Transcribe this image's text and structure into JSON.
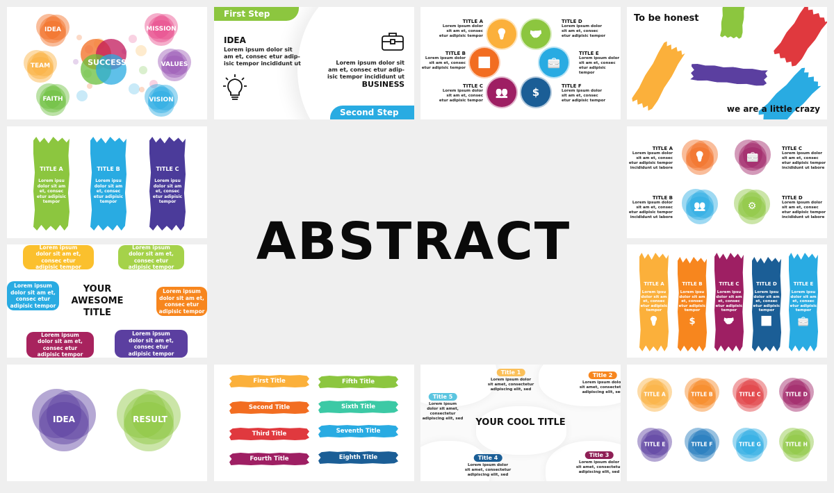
{
  "hero": {
    "title": "ABSTRACT"
  },
  "colors": {
    "yellow": "#fbb03b",
    "orange": "#f26d21",
    "red": "#e0393e",
    "crimson": "#9e1f63",
    "purple": "#5b3fa0",
    "blue": "#1b6fae",
    "lightblue": "#29abe2",
    "green": "#8cc63f",
    "pink": "#e84c8b",
    "violet": "#9b59b6",
    "teal": "#3cc9a5",
    "navy": "#1b5e96"
  },
  "success_slide": {
    "center": "SUCCESS",
    "bubbles": [
      {
        "label": "IDEA",
        "color": "#f26d21"
      },
      {
        "label": "MISSION",
        "color": "#e84c8b"
      },
      {
        "label": "TEAM",
        "color": "#fbb03b"
      },
      {
        "label": "VALUES",
        "color": "#9b59b6"
      },
      {
        "label": "FAITH",
        "color": "#6abf3c"
      },
      {
        "label": "VISION",
        "color": "#29abe2"
      }
    ]
  },
  "steps_slide": {
    "first_step": "First Step",
    "second_step": "Second Step",
    "idea_title": "IDEA",
    "idea_text": "Lorem ipsum dolor sit\nam et, consec etur adip-\nisic tempor incididunt ut",
    "business_text": "Lorem ipsum dolor sit\nam et, consec etur adip-\nisic tempor incididunt ut",
    "business_title": "BUSINESS",
    "icons": [
      "lightbulb-icon",
      "briefcase-icon"
    ]
  },
  "badges_slide": {
    "items": [
      {
        "title": "TITLE A",
        "text": "Lorem ipsum dolor\nsit am et, consec\netur adipisic tempor",
        "color": "#fbb03b",
        "icon": "lightbulb-icon"
      },
      {
        "title": "TITLE B",
        "text": "Lorem ipsum dolor\nsit am et, consec\netur adipisic tempor",
        "color": "#f26d21",
        "icon": "chart-icon"
      },
      {
        "title": "TITLE C",
        "text": "Lorem ipsum dolor\nsit am et, consec\netur adipisic tempor",
        "color": "#9e1f63",
        "icon": "team-icon"
      },
      {
        "title": "TITLE D",
        "text": "Lorem ipsum dolor\nsit am et, consec\netur adipisic tempor",
        "color": "#8cc63f",
        "icon": "handshake-icon"
      },
      {
        "title": "TITLE E",
        "text": "Lorem ipsum dolor\nsit am et, consec\netur adipisic tempor",
        "color": "#29abe2",
        "icon": "briefcase-icon"
      },
      {
        "title": "TITLE F",
        "text": "Lorem ipsum dolor\nsit am et, consec\netur adipisic tempor",
        "color": "#1b5e96",
        "icon": "dollar-icon"
      }
    ]
  },
  "honest_slide": {
    "top": "To be honest",
    "bottom": "we are a little crazy"
  },
  "brush3_slide": {
    "items": [
      {
        "title": "TITLE A",
        "text": "Lorem ipsu\ndolor sit am\net, consec\netur adipisic\ntempor",
        "color": "#8cc63f"
      },
      {
        "title": "TITLE B",
        "text": "Lorem ipsu\ndolor sit am\net, consec\netur adipisic\ntempor",
        "color": "#29abe2"
      },
      {
        "title": "TITLE C",
        "text": "Lorem ipsu\ndolor sit am\net, consec\netur adipisic\ntempor",
        "color": "#4b3b9a"
      }
    ]
  },
  "blobs4_slide": {
    "items": [
      {
        "title": "TITLE A",
        "text": "Lorem ipsum dolor\nsit am et, consec\netur adipisic tempor\nincididunt ut labore",
        "color": "#f26d21",
        "icon": "lightbulb-icon"
      },
      {
        "title": "TITLE B",
        "text": "Lorem ipsum dolor\nsit am et, consec\netur adipisic tempor\nincididunt ut labore",
        "color": "#29abe2",
        "icon": "team-icon"
      },
      {
        "title": "TITLE C",
        "text": "Lorem ipsum dolor\nsit am et, consec\netur adipisic tempor\nincididunt ut labore",
        "color": "#9e1f63",
        "icon": "briefcase-icon"
      },
      {
        "title": "TITLE D",
        "text": "Lorem ipsum dolor\nsit am et, consec\netur adipisic tempor\nincididunt ut labore",
        "color": "#8cc63f",
        "icon": "gear-icon"
      }
    ]
  },
  "awesome_slide": {
    "title": "YOUR\nAWESOME\nTITLE",
    "boxes": [
      {
        "text": "Lorem ipsum\ndolor sit am et,\nconsec etur\nadipisic tempor",
        "color": "#fbc02d"
      },
      {
        "text": "Lorem ipsum\ndolor sit am et,\nconsec etur\nadipisic tempor",
        "color": "#a5d24a"
      },
      {
        "text": "Lorem ipsum\ndolor sit am et,\nconsec etur\nadipisic tempor",
        "color": "#29abe2"
      },
      {
        "text": "Lorem ipsum\ndolor sit am et,\nconsec etur\nadipisic tempor",
        "color": "#f7861e"
      },
      {
        "text": "Lorem ipsum\ndolor sit am et,\nconsec etur\nadipisic tempor",
        "color": "#a8235e"
      },
      {
        "text": "Lorem ipsum\ndolor sit am et,\nconsec etur\nadipisic tempor",
        "color": "#5b3fa0"
      }
    ]
  },
  "brush5_slide": {
    "items": [
      {
        "title": "TITLE A",
        "text": "Lorem ipsu\ndolor sit am\net, consec\netur adipisic\ntempor",
        "color": "#fbb03b",
        "icon": "lightbulb-icon"
      },
      {
        "title": "TITLE B",
        "text": "Lorem ipsu\ndolor sit am\net, consec\netur adipisic\ntempor",
        "color": "#f7861e",
        "icon": "dollar-icon"
      },
      {
        "title": "TITLE C",
        "text": "Lorem ipsu\ndolor sit am\net, consec\netur adipisic\ntempor",
        "color": "#9e1f63",
        "icon": "handshake-icon"
      },
      {
        "title": "TITLE D",
        "text": "Lorem ipsu\ndolor sit am\net, consec\netur adipisic\ntempor",
        "color": "#1b5e96",
        "icon": "chart-icon"
      },
      {
        "title": "TITLE E",
        "text": "Lorem ipsu\ndolor sit am\net, consec\netur adipisic\ntempor",
        "color": "#29abe2",
        "icon": "briefcase-icon"
      }
    ]
  },
  "idea_result_slide": {
    "left": "IDEA",
    "right": "RESULT",
    "left_color": "#5b3fa0",
    "right_color": "#8cc63f"
  },
  "brush_titles_slide": {
    "items": [
      {
        "label": "First Title",
        "color": "#fbb03b"
      },
      {
        "label": "Second Title",
        "color": "#f26d21"
      },
      {
        "label": "Third Title",
        "color": "#e0393e"
      },
      {
        "label": "Fourth Title",
        "color": "#9e1f63"
      },
      {
        "label": "Fifth Title",
        "color": "#8cc63f"
      },
      {
        "label": "Sixth Title",
        "color": "#3cc9a5"
      },
      {
        "label": "Seventh Title",
        "color": "#29abe2"
      },
      {
        "label": "Eighth Title",
        "color": "#1b5e96"
      }
    ]
  },
  "cool_slide": {
    "title": "YOUR COOL TITLE",
    "items": [
      {
        "label": "Title 1",
        "text": "Lorem ipsum dolor\nsit amet, consectetur\nadipiscing elit, sed",
        "color": "#fbc05a"
      },
      {
        "label": "Title 2",
        "text": "Lorem ipsum dolor\nsit amet, consectetur\nadipiscing elit, sed",
        "color": "#f7861e"
      },
      {
        "label": "Title 3",
        "text": "Lorem ipsum dolor\nsit amet, consectetur\nadipiscing elit, sed",
        "color": "#8e1f55"
      },
      {
        "label": "Title 4",
        "text": "Lorem ipsum dolor\nsit amet, consectetur\nadipiscing elit, sed",
        "color": "#1b5e96"
      },
      {
        "label": "Title 5",
        "text": "Lorem ipsum\ndolor sit amet,\nconsectetur\nadipiscing elit, sed",
        "color": "#5bc5e0"
      }
    ]
  },
  "blobs8_slide": {
    "items": [
      {
        "label": "TITLE A",
        "color": "#fbb03b"
      },
      {
        "label": "TITLE B",
        "color": "#f7861e"
      },
      {
        "label": "TITLE C",
        "color": "#e0393e"
      },
      {
        "label": "TITLE D",
        "color": "#9e1f63"
      },
      {
        "label": "TITLE E",
        "color": "#5b3fa0"
      },
      {
        "label": "TITLE F",
        "color": "#1b75bb"
      },
      {
        "label": "TITLE G",
        "color": "#29abe2"
      },
      {
        "label": "TITLE H",
        "color": "#8cc63f"
      }
    ]
  }
}
